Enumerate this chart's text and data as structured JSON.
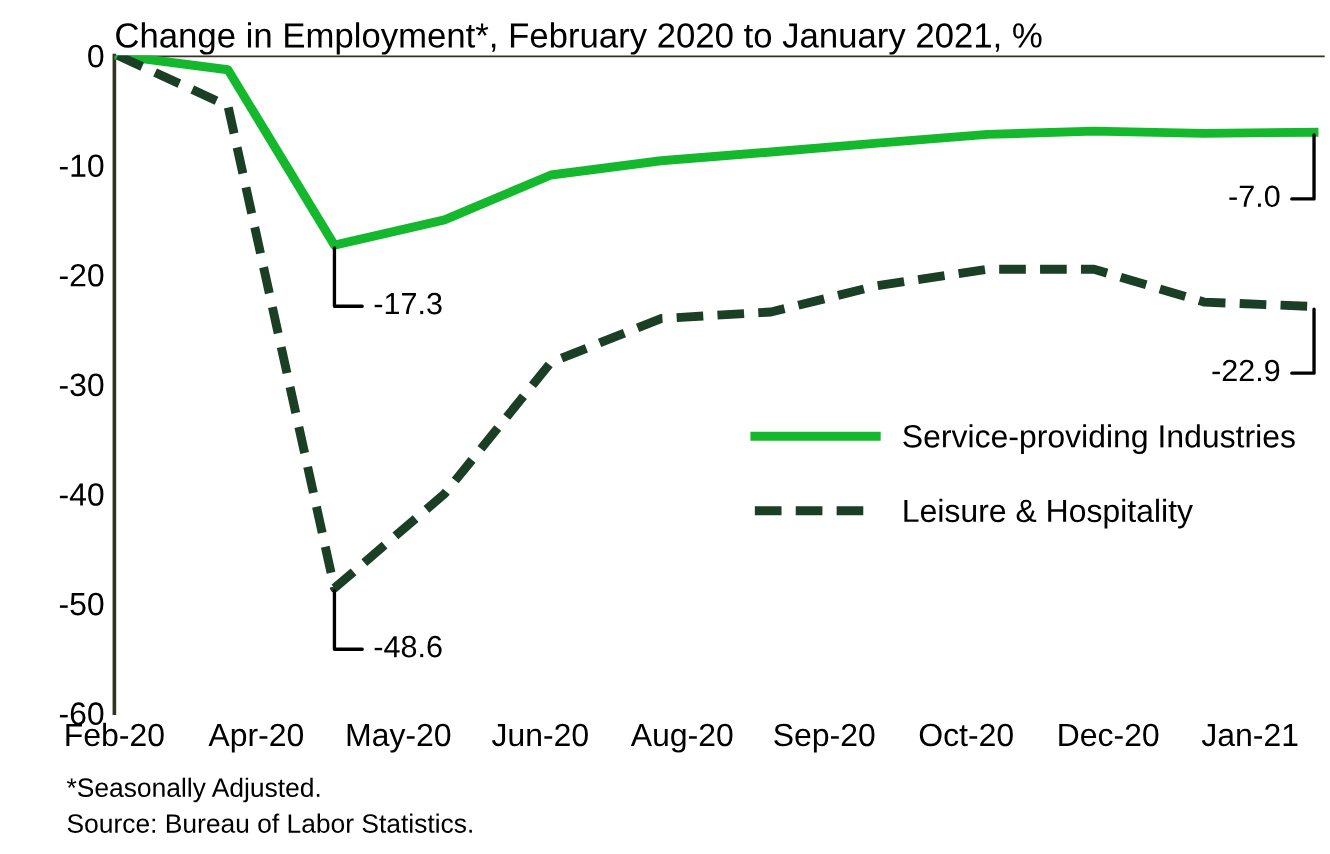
{
  "chart_data": {
    "type": "line",
    "title": "Change in Employment*, February 2020 to January 2021, %",
    "x": [
      "2020-02-29",
      "2020-03-31",
      "2020-04-30",
      "2020-05-31",
      "2020-06-30",
      "2020-07-31",
      "2020-08-31",
      "2020-09-30",
      "2020-10-31",
      "2020-11-30",
      "2020-12-31",
      "2021-01-31"
    ],
    "series": [
      {
        "name": "Service-providing Industries",
        "color": "#14b82c",
        "line_style": "solid",
        "values": [
          0,
          -1.3,
          -17.3,
          -15.0,
          -10.9,
          -9.6,
          -8.8,
          -8.0,
          -7.2,
          -6.9,
          -7.1,
          -7.0
        ],
        "value_labels": [
          null,
          null,
          "-17.3",
          null,
          null,
          null,
          null,
          null,
          null,
          null,
          null,
          "-7.0"
        ]
      },
      {
        "name": "Leisure & Hospitality",
        "color": "#1a3f24",
        "line_style": "dashed",
        "values": [
          0,
          -4.6,
          -48.6,
          -40.0,
          -28.0,
          -24.0,
          -23.4,
          -21.0,
          -19.5,
          -19.5,
          -22.5,
          -22.9
        ],
        "value_labels": [
          null,
          null,
          "-48.6",
          null,
          null,
          null,
          null,
          null,
          null,
          null,
          null,
          "-22.9"
        ]
      }
    ],
    "xlim": [
      "2020-02-28",
      "2021-02-03"
    ],
    "xticks": [
      {
        "value": "2020-02-28",
        "label": "Feb-20"
      },
      {
        "value": "2020-04-08",
        "label": "Apr-20"
      },
      {
        "value": "2020-05-18",
        "label": "May-20"
      },
      {
        "value": "2020-06-27",
        "label": "Jun-20"
      },
      {
        "value": "2020-08-06",
        "label": "Aug-20"
      },
      {
        "value": "2020-09-15",
        "label": "Sep-20"
      },
      {
        "value": "2020-10-25",
        "label": "Oct-20"
      },
      {
        "value": "2020-12-04",
        "label": "Dec-20"
      },
      {
        "value": "2021-01-13",
        "label": "Jan-21"
      }
    ],
    "ylim": [
      -60,
      0
    ],
    "yticks": [
      -60,
      -50,
      -40,
      -30,
      -20,
      -10,
      0
    ],
    "ref_lines": [
      {
        "axis": "y",
        "value": 0,
        "color": "#333322"
      }
    ],
    "grid": false,
    "legend": "right",
    "marker": "none",
    "annotations": [
      "*Seasonally Adjusted.",
      "Source: Bureau of Labor Statistics."
    ]
  }
}
